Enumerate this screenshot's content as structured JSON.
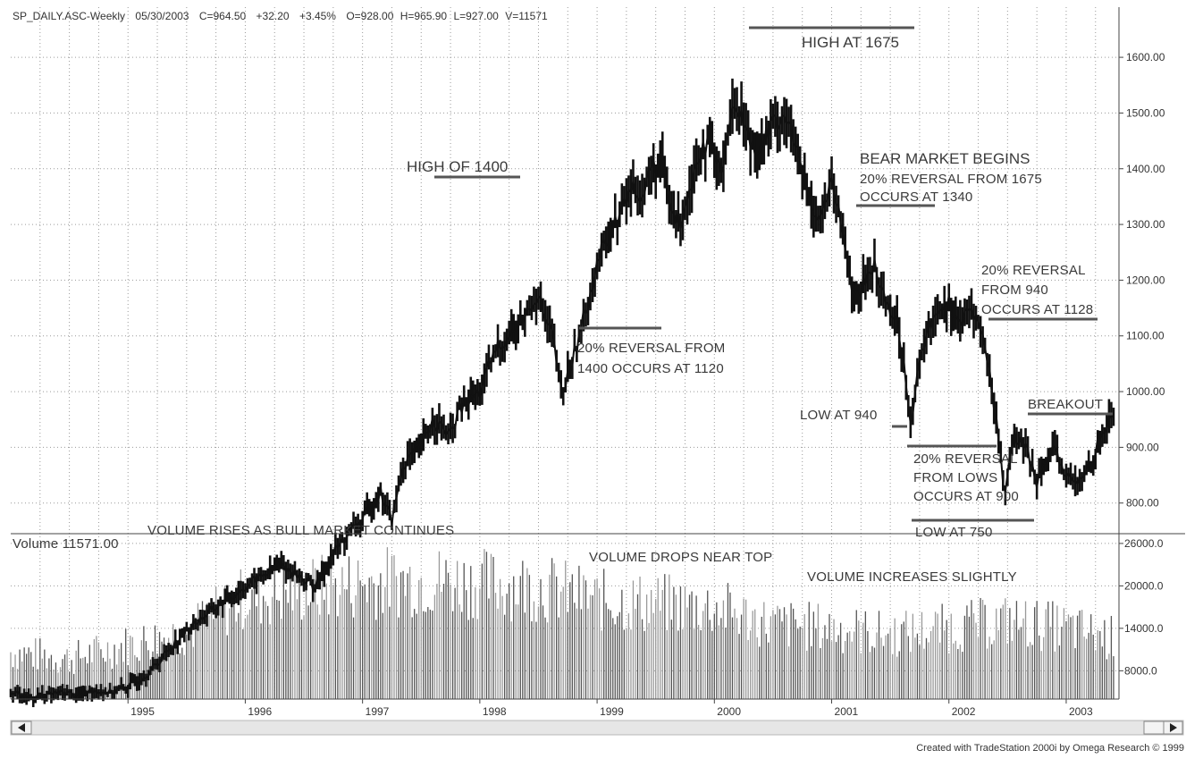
{
  "header": {
    "symbol": "SP_DAILY.ASC-Weekly",
    "date": "05/30/2003",
    "close": "C=964.50",
    "change": "+32.20",
    "change_pct": "+3.45%",
    "open": "O=928.00",
    "high": "H=965.90",
    "low": "L=927.00",
    "volume": "V=11571"
  },
  "volume_label": "Volume 11571.00",
  "footer": "Created with TradeStation 2000i by Omega Research © 1999",
  "colors": {
    "price": "#111111",
    "volume_dark": "#555555",
    "volume_light": "#9a9a9a",
    "grid": "#9a9a9a",
    "annotation_line": "#555555",
    "scrollbar": "#e6e6e6"
  },
  "chart_data": {
    "type": "bar",
    "price_panel": {
      "ylim": [
        745,
        1690
      ],
      "yticks": [
        800,
        900,
        1000,
        1100,
        1200,
        1300,
        1400,
        1500,
        1600
      ],
      "ytick_labels": [
        "800.00",
        "900.00",
        "1000.00",
        "1100.00",
        "1200.00",
        "1300.00",
        "1400.00",
        "1500.00",
        "1600.00"
      ],
      "xlim": [
        1994.0,
        2003.45
      ],
      "x": [
        1994.0,
        1994.1,
        1994.3,
        1994.45,
        1994.6,
        1994.7,
        1994.85,
        1995.0,
        1995.2,
        1995.4,
        1995.6,
        1995.8,
        1996.0,
        1996.15,
        1996.3,
        1996.45,
        1996.6,
        1996.75,
        1996.9,
        1997.0,
        1997.15,
        1997.25,
        1997.35,
        1997.5,
        1997.6,
        1997.75,
        1997.82,
        1997.9,
        1998.0,
        1998.15,
        1998.3,
        1998.4,
        1998.5,
        1998.55,
        1998.62,
        1998.7,
        1998.75,
        1998.85,
        1999.0,
        1999.1,
        1999.2,
        1999.3,
        1999.4,
        1999.45,
        1999.55,
        1999.62,
        1999.7,
        1999.78,
        1999.9,
        2000.0,
        2000.05,
        2000.12,
        2000.2,
        2000.3,
        2000.4,
        2000.5,
        2000.6,
        2000.7,
        2000.8,
        2000.9,
        2001.0,
        2001.1,
        2001.2,
        2001.25,
        2001.35,
        2001.45,
        2001.55,
        2001.62,
        2001.68,
        2001.72,
        2001.8,
        2001.9,
        2002.0,
        2002.1,
        2002.2,
        2002.3,
        2002.4,
        2002.48,
        2002.52,
        2002.55,
        2002.65,
        2002.75,
        2002.8,
        2002.9,
        2003.0,
        2003.1,
        2003.2,
        2003.3,
        2003.41
      ],
      "close": [
        465,
        450,
        455,
        460,
        455,
        465,
        460,
        470,
        500,
        550,
        590,
        620,
        650,
        670,
        690,
        670,
        650,
        710,
        750,
        770,
        820,
        770,
        870,
        900,
        950,
        920,
        965,
        980,
        1000,
        1080,
        1110,
        1140,
        1180,
        1130,
        1100,
        990,
        1030,
        1100,
        1230,
        1280,
        1320,
        1370,
        1350,
        1400,
        1410,
        1330,
        1300,
        1360,
        1450,
        1420,
        1390,
        1480,
        1520,
        1450,
        1440,
        1480,
        1500,
        1430,
        1350,
        1310,
        1370,
        1280,
        1160,
        1180,
        1230,
        1170,
        1130,
        1050,
        940,
        1010,
        1100,
        1150,
        1160,
        1120,
        1150,
        1090,
        960,
        810,
        890,
        920,
        900,
        840,
        880,
        890,
        850,
        830,
        870,
        920,
        964.5
      ],
      "annotations": [
        {
          "text": "HIGH AT 1675",
          "level": 1675
        },
        {
          "text": "HIGH OF 1400",
          "level": 1400
        },
        {
          "text": "BEAR MARKET BEGINS",
          "level": null
        },
        {
          "text": "20% REVERSAL FROM 1675",
          "level": null
        },
        {
          "text": "OCCURS AT 1340",
          "level": 1340
        },
        {
          "text": "20% REVERSAL FROM",
          "level": null
        },
        {
          "text": "1400 OCCURS AT 1120",
          "level": 1120
        },
        {
          "text": "20% REVERSAL",
          "level": null
        },
        {
          "text": "FROM 940",
          "level": null
        },
        {
          "text": "OCCURS AT 1128",
          "level": 1128
        },
        {
          "text": "LOW AT 940",
          "level": 940
        },
        {
          "text": "BREAKOUT",
          "level": 960
        },
        {
          "text": "20% REVERSAL",
          "level": null
        },
        {
          "text": "FROM LOWS",
          "level": null
        },
        {
          "text": "OCCURS AT 900",
          "level": 900
        },
        {
          "text": "LOW AT 750",
          "level": 750
        }
      ]
    },
    "volume_panel": {
      "ylim": [
        4000,
        27000
      ],
      "yticks": [
        8000,
        14000,
        20000,
        26000
      ],
      "ytick_labels": [
        "8000.0",
        "14000.0",
        "20000.0",
        "26000.0"
      ],
      "annotations": [
        "VOLUME RISES AS BULL MARKET CONTINUES",
        "VOLUME DROPS NEAR TOP",
        "VOLUME INCREASES SLIGHTLY"
      ],
      "x": [
        1994.0,
        1994.5,
        1995.0,
        1995.5,
        1996.0,
        1996.5,
        1997.0,
        1997.5,
        1998.0,
        1998.5,
        1999.0,
        1999.5,
        2000.0,
        2000.5,
        2001.0,
        2001.5,
        2002.0,
        2002.5,
        2003.0,
        2003.4
      ],
      "volume": [
        11000,
        10000,
        12000,
        14000,
        19000,
        20000,
        21000,
        21500,
        21000,
        20500,
        18500,
        18000,
        17500,
        15000,
        14500,
        13500,
        14500,
        15500,
        14500,
        13000
      ]
    },
    "xaxis": {
      "tick_years": [
        1995,
        1996,
        1997,
        1998,
        1999,
        2000,
        2001,
        2002,
        2003
      ],
      "tick_labels": [
        "1995",
        "1996",
        "1997",
        "1998",
        "1999",
        "2000",
        "2001",
        "2002",
        "2003"
      ]
    }
  }
}
